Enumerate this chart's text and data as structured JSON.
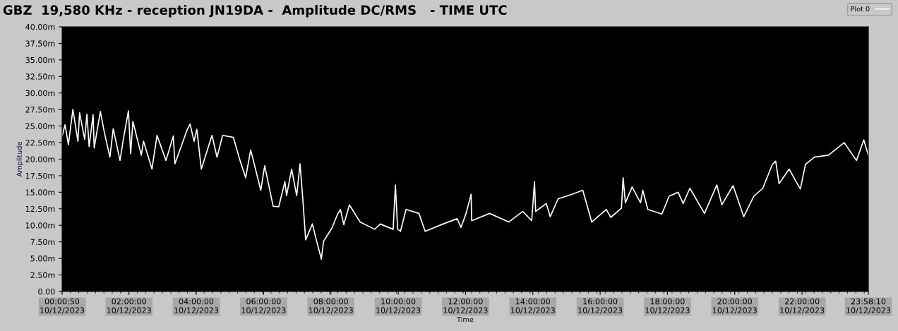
{
  "chart_data": {
    "type": "line",
    "title": "GBZ  19,580 KHz - reception JN19DA -  Amplitude DC/RMS   - TIME UTC",
    "xlabel": "Time",
    "ylabel": "Amplitude",
    "legend": "top right",
    "grid": false,
    "marker": "none",
    "line_style": "solid",
    "xlim": [
      "2023-12-10T00:00:50",
      "2023-12-10T23:58:10"
    ],
    "xticks": [
      {
        "value": "2023-12-10T00:00:50",
        "label": "00:00:50\n10/12/2023"
      },
      {
        "value": "2023-12-10T02:00",
        "label": "02:00:00\n10/12/2023"
      },
      {
        "value": "2023-12-10T04:00",
        "label": "04:00:00\n10/12/2023"
      },
      {
        "value": "2023-12-10T06:00",
        "label": "06:00:00\n10/12/2023"
      },
      {
        "value": "2023-12-10T08:00",
        "label": "08:00:00\n10/12/2023"
      },
      {
        "value": "2023-12-10T10:00",
        "label": "10:00:00\n10/12/2023"
      },
      {
        "value": "2023-12-10T12:00",
        "label": "12:00:00\n10/12/2023"
      },
      {
        "value": "2023-12-10T14:00",
        "label": "14:00:00\n10/12/2023"
      },
      {
        "value": "2023-12-10T16:00",
        "label": "16:00:00\n10/12/2023"
      },
      {
        "value": "2023-12-10T18:00",
        "label": "18:00:00\n10/12/2023"
      },
      {
        "value": "2023-12-10T20:00",
        "label": "20:00:00\n10/12/2023"
      },
      {
        "value": "2023-12-10T22:00",
        "label": "22:00:00\n10/12/2023"
      },
      {
        "value": "2023-12-10T23:58:10",
        "label": "23:58:10\n10/12/2023"
      }
    ],
    "ylim": [
      0,
      40
    ],
    "yticks": [
      {
        "value": 0,
        "label": "0.00"
      },
      {
        "value": 2.5,
        "label": "2.50m"
      },
      {
        "value": 5,
        "label": "5.00m"
      },
      {
        "value": 7.5,
        "label": "7.50m"
      },
      {
        "value": 10,
        "label": "10.00m"
      },
      {
        "value": 12.5,
        "label": "12.50m"
      },
      {
        "value": 15,
        "label": "15.00m"
      },
      {
        "value": 17.5,
        "label": "17.50m"
      },
      {
        "value": 20,
        "label": "20.00m"
      },
      {
        "value": 22.5,
        "label": "22.50m"
      },
      {
        "value": 25,
        "label": "25.00m"
      },
      {
        "value": 27.5,
        "label": "27.50m"
      },
      {
        "value": 30,
        "label": "30.00m"
      },
      {
        "value": 32.5,
        "label": "32.50m"
      },
      {
        "value": 35,
        "label": "35.00m"
      },
      {
        "value": 37.5,
        "label": "37.50m"
      },
      {
        "value": 40,
        "label": "40.00m"
      }
    ],
    "series": [
      {
        "name": "Plot 0",
        "color": "#ffffff",
        "x": [
          "2023-12-10T00:00:50",
          "2023-12-10T00:06",
          "2023-12-10T00:12",
          "2023-12-10T00:20",
          "2023-12-10T00:29",
          "2023-12-10T00:32",
          "2023-12-10T00:41",
          "2023-12-10T00:45",
          "2023-12-10T00:49",
          "2023-12-10T00:56",
          "2023-12-10T00:58",
          "2023-12-10T01:09",
          "2023-12-10T01:16",
          "2023-12-10T01:26",
          "2023-12-10T01:32",
          "2023-12-10T01:44",
          "2023-12-10T01:50",
          "2023-12-10T01:59",
          "2023-12-10T02:03",
          "2023-12-10T02:07",
          "2023-12-10T02:22",
          "2023-12-10T02:26",
          "2023-12-10T02:41",
          "2023-12-10T02:50",
          "2023-12-10T03:06",
          "2023-12-10T03:19",
          "2023-12-10T03:22",
          "2023-12-10T03:44",
          "2023-12-10T03:49",
          "2023-12-10T03:56",
          "2023-12-10T04:01",
          "2023-12-10T04:09",
          "2023-12-10T04:28",
          "2023-12-10T04:37",
          "2023-12-10T04:47",
          "2023-12-10T05:06",
          "2023-12-10T05:18",
          "2023-12-10T05:28",
          "2023-12-10T05:37",
          "2023-12-10T05:55",
          "2023-12-10T06:02",
          "2023-12-10T06:17",
          "2023-12-10T06:27",
          "2023-12-10T06:38",
          "2023-12-10T06:41",
          "2023-12-10T06:50",
          "2023-12-10T06:59",
          "2023-12-10T07:05",
          "2023-12-10T07:10",
          "2023-12-10T07:15",
          "2023-12-10T07:27",
          "2023-12-10T07:34",
          "2023-12-10T07:43",
          "2023-12-10T07:47",
          "2023-12-10T08:02",
          "2023-12-10T08:12",
          "2023-12-10T08:17",
          "2023-12-10T08:23",
          "2023-12-10T08:33",
          "2023-12-10T08:52",
          "2023-12-10T09:18",
          "2023-12-10T09:28",
          "2023-12-10T09:51",
          "2023-12-10T09:55",
          "2023-12-10T09:59",
          "2023-12-10T10:04",
          "2023-12-10T10:14",
          "2023-12-10T10:37",
          "2023-12-10T10:48",
          "2023-12-10T11:20",
          "2023-12-10T11:45",
          "2023-12-10T11:52",
          "2023-12-10T12:01",
          "2023-12-10T12:10",
          "2023-12-10T12:11",
          "2023-12-10T12:43",
          "2023-12-10T13:17",
          "2023-12-10T13:42",
          "2023-12-10T13:58",
          "2023-12-10T14:03",
          "2023-12-10T14:05",
          "2023-12-10T14:24",
          "2023-12-10T14:31",
          "2023-12-10T14:45",
          "2023-12-10T15:10",
          "2023-12-10T15:29",
          "2023-12-10T15:45",
          "2023-12-10T16:11",
          "2023-12-10T16:19",
          "2023-12-10T16:38",
          "2023-12-10T16:41",
          "2023-12-10T16:45",
          "2023-12-10T16:57",
          "2023-12-10T17:12",
          "2023-12-10T17:16",
          "2023-12-10T17:25",
          "2023-12-10T17:50",
          "2023-12-10T18:03",
          "2023-12-10T18:19",
          "2023-12-10T18:28",
          "2023-12-10T18:40",
          "2023-12-10T19:06",
          "2023-12-10T19:28",
          "2023-12-10T19:37",
          "2023-12-10T19:57",
          "2023-12-10T20:16",
          "2023-12-10T20:34",
          "2023-12-10T20:50",
          "2023-12-10T21:07",
          "2023-12-10T21:13",
          "2023-12-10T21:19",
          "2023-12-10T21:37",
          "2023-12-10T21:50",
          "2023-12-10T21:57",
          "2023-12-10T22:06",
          "2023-12-10T22:22",
          "2023-12-10T22:47",
          "2023-12-10T23:15",
          "2023-12-10T23:37",
          "2023-12-10T23:50",
          "2023-12-10T23:58:10"
        ],
        "values": [
          23.5,
          25.2,
          22.2,
          27.5,
          22.7,
          27.0,
          23.0,
          26.8,
          21.9,
          26.7,
          21.7,
          27.2,
          24.1,
          20.3,
          24.6,
          19.8,
          23.0,
          27.3,
          20.8,
          25.7,
          20.6,
          22.7,
          18.5,
          23.6,
          19.8,
          23.5,
          19.3,
          24.5,
          25.3,
          22.7,
          24.5,
          18.5,
          23.6,
          20.3,
          23.6,
          23.3,
          19.8,
          17.2,
          21.4,
          15.3,
          19.0,
          12.9,
          12.8,
          16.6,
          14.5,
          18.5,
          14.5,
          19.3,
          13.9,
          7.8,
          10.2,
          7.8,
          4.9,
          7.6,
          9.6,
          11.7,
          12.4,
          10.1,
          13.1,
          10.5,
          9.4,
          10.2,
          9.4,
          16.1,
          9.4,
          9.1,
          12.4,
          11.8,
          9.1,
          10.2,
          11.0,
          9.7,
          11.8,
          14.7,
          10.7,
          11.8,
          10.5,
          12.1,
          10.7,
          16.6,
          12.1,
          13.3,
          11.3,
          14.0,
          14.7,
          15.3,
          10.5,
          12.4,
          11.2,
          12.6,
          17.2,
          13.4,
          15.8,
          13.4,
          15.3,
          12.4,
          11.7,
          14.4,
          15.0,
          13.3,
          15.6,
          11.8,
          16.1,
          13.1,
          16.0,
          11.3,
          14.4,
          15.6,
          19.2,
          19.7,
          16.3,
          18.5,
          16.5,
          15.5,
          19.2,
          20.3,
          20.6,
          22.5,
          19.8,
          22.9,
          20.6
        ]
      }
    ]
  }
}
